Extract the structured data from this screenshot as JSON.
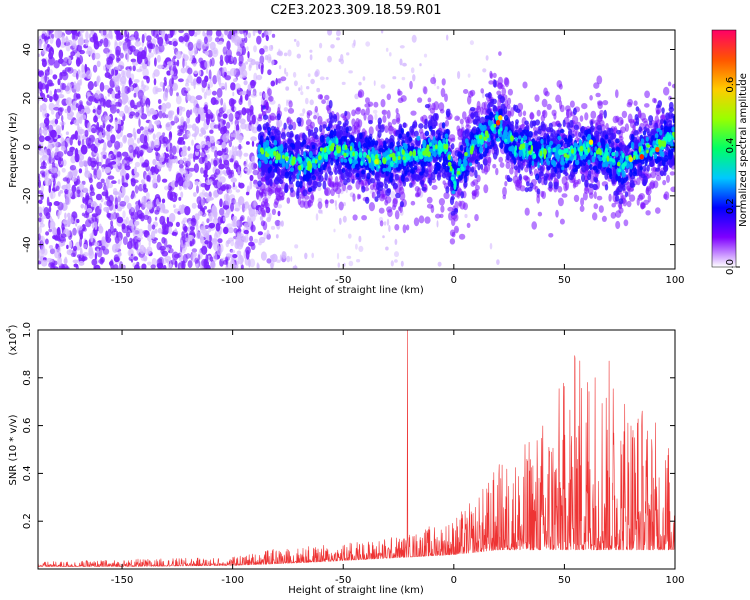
{
  "figure_title": "C2E3.2023.309.18.59.R01",
  "chart_data": [
    {
      "type": "heatmap",
      "name": "spectrogram",
      "title": "C2E3.2023.309.18.59.R01",
      "xlabel": "Height of straight line (km)",
      "ylabel": "Frequency (Hz)",
      "xlim": [
        -188,
        100
      ],
      "ylim": [
        -50,
        48
      ],
      "xticks": [
        -150,
        -100,
        -50,
        0,
        50,
        100
      ],
      "yticks": [
        -40,
        -20,
        0,
        20,
        40
      ],
      "colorbar": {
        "label": "Normalized spectral amplitude",
        "range": [
          0.0,
          0.78
        ],
        "ticks": [
          "0.0",
          "0.2",
          "0.4",
          "0.6"
        ],
        "tick_values": [
          0.0,
          0.2,
          0.4,
          0.6
        ],
        "colors": [
          "#ffffff",
          "#7f00ff",
          "#0000ff",
          "#00c8ff",
          "#00ff66",
          "#99ff00",
          "#ffcc00",
          "#ff5500",
          "#ff0066"
        ]
      },
      "ridge": {
        "description_values": "peak frequency (Hz) vs height (km)",
        "x": [
          -85,
          -75,
          -65,
          -55,
          -45,
          -35,
          -25,
          -15,
          -8,
          -3,
          0,
          5,
          10,
          15,
          20,
          25,
          30,
          40,
          50,
          60,
          70,
          75,
          80,
          90,
          100
        ],
        "y": [
          -2,
          -5,
          -8,
          0,
          -3,
          -6,
          -4,
          -3,
          0,
          0,
          -15,
          -5,
          2,
          5,
          10,
          3,
          0,
          -2,
          -3,
          0,
          -4,
          -8,
          -4,
          0,
          4
        ]
      },
      "background_colors": {
        "noise": "#7a1fff",
        "faint": "#d4b8ff",
        "plot_bg": "#ffffff"
      }
    },
    {
      "type": "line",
      "name": "snr",
      "xlabel": "Height of straight line (km)",
      "ylabel": "SNR (10 * v/v)",
      "y_multiplier": "(x10",
      "y_multiplier_exp": "4",
      "y_multiplier_close": ")",
      "xlim": [
        -188,
        100
      ],
      "ylim": [
        0,
        1.0
      ],
      "xticks": [
        -150,
        -100,
        -50,
        0,
        50,
        100
      ],
      "yticks": [
        "0.2",
        "0.4",
        "0.6",
        "0.8",
        "1.0"
      ],
      "ytick_values": [
        0.2,
        0.4,
        0.6,
        0.8,
        1.0
      ],
      "series": [
        {
          "color": "#ee3333",
          "envelope_x": [
            -188,
            -150,
            -100,
            -85,
            -60,
            -40,
            -20,
            0,
            10,
            20,
            30,
            40,
            50,
            55,
            60,
            70,
            80,
            90,
            100
          ],
          "envelope_y": [
            0.03,
            0.04,
            0.05,
            0.08,
            0.1,
            0.12,
            0.15,
            0.22,
            0.3,
            0.45,
            0.5,
            0.65,
            0.82,
            0.93,
            1.0,
            0.9,
            0.8,
            0.65,
            0.5
          ],
          "floor_y": [
            0.01,
            0.01,
            0.015,
            0.02,
            0.03,
            0.04,
            0.05,
            0.06,
            0.07,
            0.08,
            0.08,
            0.08,
            0.08,
            0.08,
            0.08,
            0.08,
            0.08,
            0.08,
            0.08
          ]
        }
      ]
    }
  ]
}
